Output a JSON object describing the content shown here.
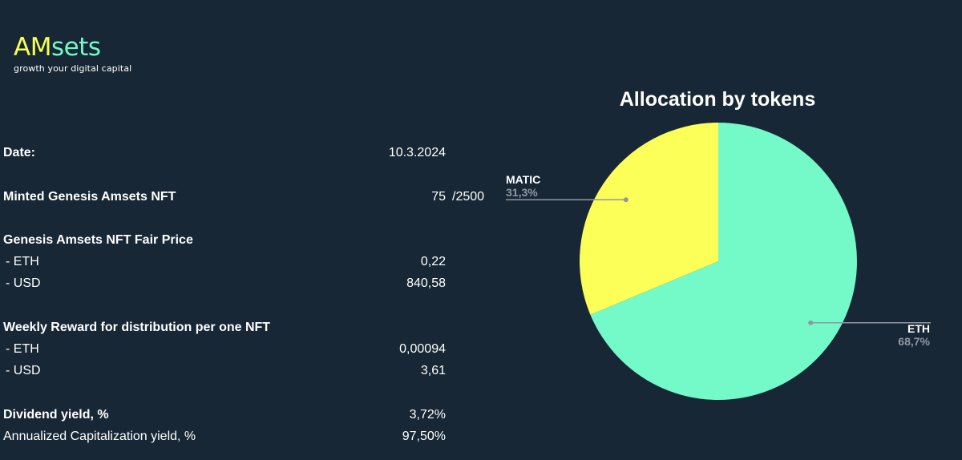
{
  "logo": {
    "brand_part1": "AM",
    "brand_part2": "sets",
    "tagline": "growth your digital capital"
  },
  "stats": {
    "date_label": "Date:",
    "date_value": "10.3.2024",
    "minted_label": "Minted Genesis Amsets NFT",
    "minted_value": "75",
    "minted_total": "/2500",
    "fair_price_label": "Genesis Amsets NFT Fair Price",
    "fair_eth_label": "- ETH",
    "fair_eth_value": "0,22",
    "fair_usd_label": "- USD",
    "fair_usd_value": "840,58",
    "reward_label": "Weekly Reward for distribution per one NFT",
    "reward_eth_label": "- ETH",
    "reward_eth_value": "0,00094",
    "reward_usd_label": "- USD",
    "reward_usd_value": "3,61",
    "dividend_label": "Dividend yield, %",
    "dividend_value": "3,72%",
    "annual_label": "Annualized Capitalization yield, %",
    "annual_value": "97,50%"
  },
  "chart_data": {
    "type": "pie",
    "title": "Allocation by tokens",
    "slices": [
      {
        "label": "ETH",
        "value": 68.7,
        "display": "68,7%",
        "color": "#74f9c8"
      },
      {
        "label": "MATIC",
        "value": 31.3,
        "display": "31,3%",
        "color": "#fcff57"
      }
    ],
    "start": "12 o'clock, clockwise",
    "leader_color": "#8f98a1"
  }
}
